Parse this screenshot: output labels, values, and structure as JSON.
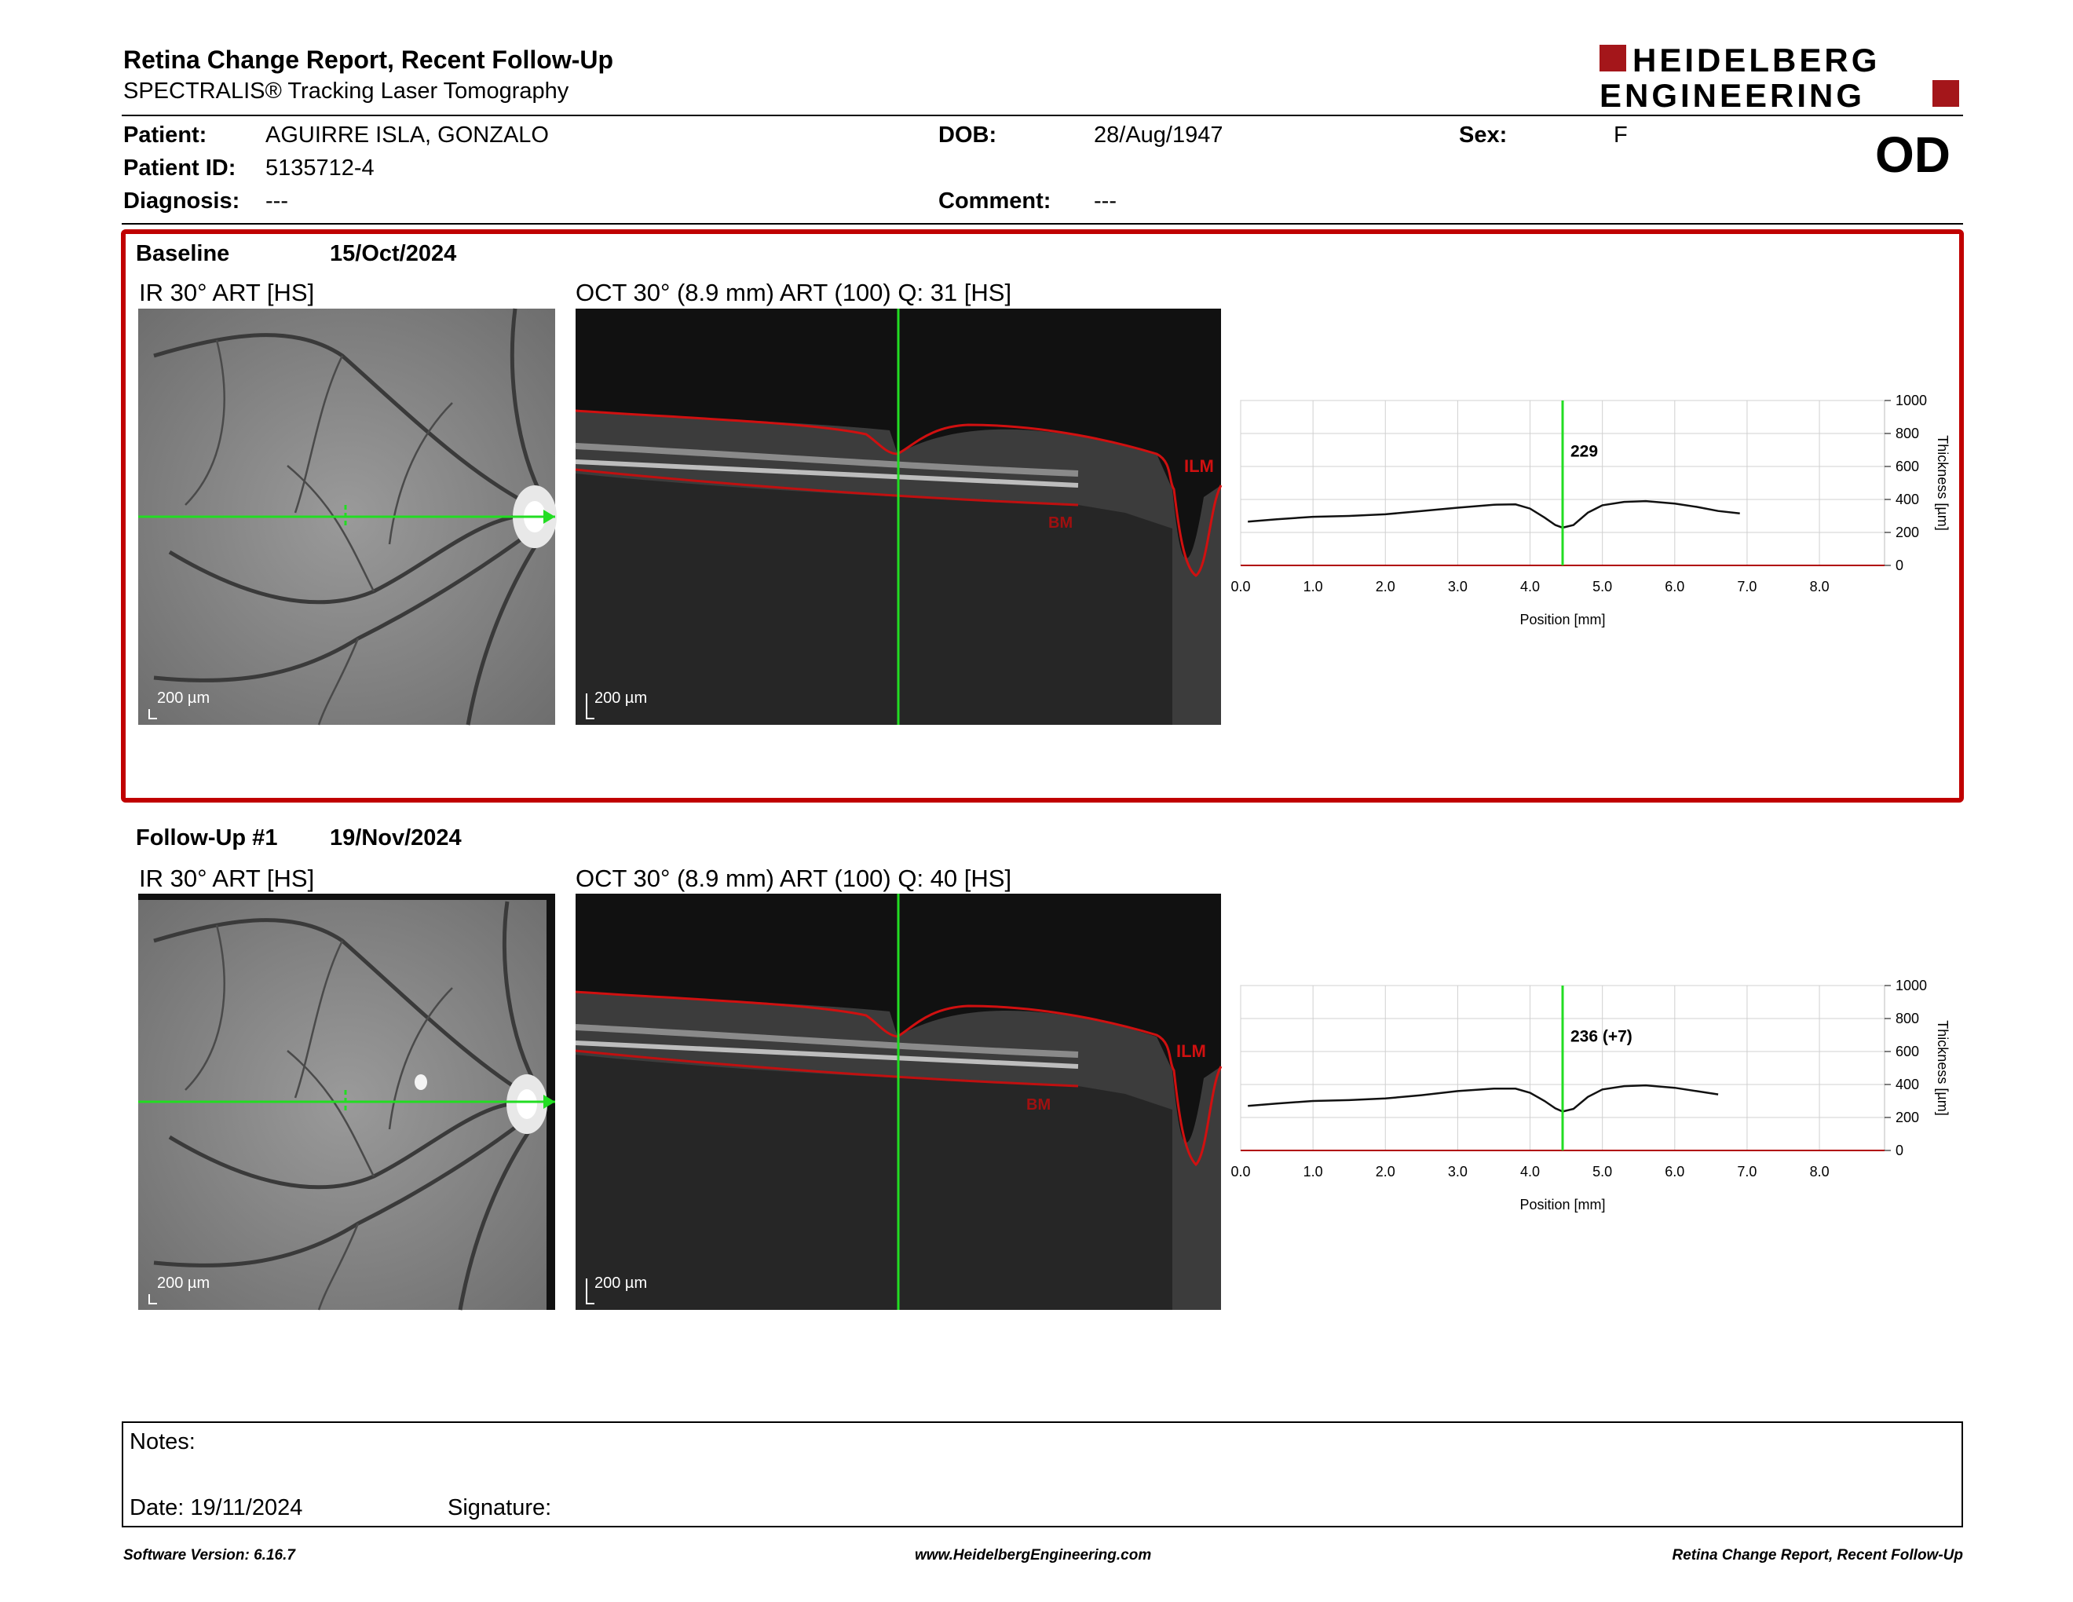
{
  "header": {
    "title": "Retina Change Report, Recent Follow-Up",
    "subtitle": "SPECTRALIS® Tracking Laser Tomography",
    "logo_line1": "HEIDELBERG",
    "logo_line2": "ENGINEERING"
  },
  "patient": {
    "patient_label": "Patient:",
    "patient_value": "AGUIRRE ISLA, GONZALO",
    "id_label": "Patient ID:",
    "id_value": "5135712-4",
    "diagnosis_label": "Diagnosis:",
    "diagnosis_value": "---",
    "dob_label": "DOB:",
    "dob_value": "28/Aug/1947",
    "comment_label": "Comment:",
    "comment_value": "---",
    "sex_label": "Sex:",
    "sex_value": "F",
    "eye": "OD"
  },
  "baseline": {
    "label": "Baseline",
    "date": "15/Oct/2024",
    "ir_label": "IR 30° ART [HS]",
    "oct_label": "OCT 30° (8.9 mm) ART (100) Q: 31 [HS]",
    "ir_scale": "200 µm",
    "oct_scale": "200 µm",
    "ilm": "ILM",
    "bm": "BM"
  },
  "followup": {
    "label": "Follow-Up #1",
    "date": "19/Nov/2024",
    "ir_label": "IR 30° ART [HS]",
    "oct_label": "OCT 30° (8.9 mm) ART (100) Q: 40 [HS]",
    "ir_scale": "200 µm",
    "oct_scale": "200 µm",
    "ilm": "ILM",
    "bm": "BM"
  },
  "chart_data": [
    {
      "type": "line",
      "xlabel": "Position [mm]",
      "ylabel": "Thickness [µm]",
      "xlim": [
        0,
        8.9
      ],
      "ylim": [
        0,
        1000
      ],
      "x_ticks": [
        "0.0",
        "1.0",
        "2.0",
        "3.0",
        "4.0",
        "5.0",
        "6.0",
        "7.0",
        "8.0"
      ],
      "y_ticks": [
        "0",
        "200",
        "400",
        "600",
        "800",
        "1000"
      ],
      "cursor_x": 4.45,
      "cursor_label": "229",
      "x": [
        0.1,
        0.5,
        1.0,
        1.5,
        2.0,
        2.5,
        3.0,
        3.5,
        3.8,
        4.0,
        4.2,
        4.35,
        4.45,
        4.6,
        4.8,
        5.0,
        5.3,
        5.6,
        6.0,
        6.3,
        6.6,
        6.9
      ],
      "y": [
        265,
        280,
        295,
        300,
        310,
        330,
        350,
        368,
        370,
        345,
        290,
        245,
        229,
        245,
        320,
        365,
        385,
        390,
        375,
        355,
        330,
        315
      ]
    },
    {
      "type": "line",
      "xlabel": "Position [mm]",
      "ylabel": "Thickness [µm]",
      "xlim": [
        0,
        8.9
      ],
      "ylim": [
        0,
        1000
      ],
      "x_ticks": [
        "0.0",
        "1.0",
        "2.0",
        "3.0",
        "4.0",
        "5.0",
        "6.0",
        "7.0",
        "8.0"
      ],
      "y_ticks": [
        "0",
        "200",
        "400",
        "600",
        "800",
        "1000"
      ],
      "cursor_x": 4.45,
      "cursor_label": "236 (+7)",
      "x": [
        0.1,
        0.5,
        1.0,
        1.5,
        2.0,
        2.5,
        3.0,
        3.5,
        3.8,
        4.0,
        4.2,
        4.35,
        4.45,
        4.6,
        4.8,
        5.0,
        5.3,
        5.6,
        6.0,
        6.3,
        6.6
      ],
      "y": [
        270,
        285,
        300,
        305,
        315,
        335,
        360,
        375,
        375,
        350,
        300,
        255,
        236,
        252,
        325,
        370,
        390,
        395,
        380,
        360,
        340
      ]
    }
  ],
  "notes": {
    "notes_label": "Notes:",
    "date_label": "Date: 19/11/2024",
    "signature_label": "Signature:"
  },
  "footer": {
    "left": "Software Version: 6.16.7",
    "center": "www.HeidelbergEngineering.com",
    "right": "Retina Change Report, Recent Follow-Up"
  }
}
